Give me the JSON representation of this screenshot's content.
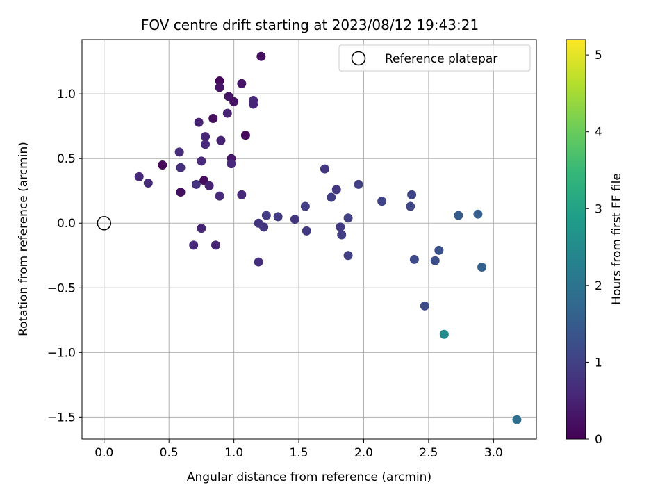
{
  "chart_data": {
    "type": "scatter",
    "title": "FOV centre drift starting at 2023/08/12 19:43:21",
    "xlabel": "Angular distance from reference (arcmin)",
    "ylabel": "Rotation from reference (arcmin)",
    "xlim": [
      -0.17,
      3.33
    ],
    "ylim": [
      -1.67,
      1.42
    ],
    "grid": true,
    "xticks": [
      0.0,
      0.5,
      1.0,
      1.5,
      2.0,
      2.5,
      3.0
    ],
    "xtick_labels": [
      "0.0",
      "0.5",
      "1.0",
      "1.5",
      "2.0",
      "2.5",
      "3.0"
    ],
    "yticks": [
      1.0,
      0.5,
      0.0,
      -0.5,
      -1.0,
      -1.5
    ],
    "ytick_labels": [
      "1.0",
      "0.5",
      "0.0",
      "−0.5",
      "−1.0",
      "−1.5"
    ],
    "legend": {
      "position": "top-right",
      "entries": [
        "Reference platepar"
      ]
    },
    "reference_point": {
      "x": 0.0,
      "y": 0.0,
      "marker": "open-circle"
    },
    "colorbar": {
      "label": "Hours from first FF file",
      "colormap": "viridis",
      "range": [
        0,
        5.2
      ],
      "ticks": [
        0,
        1,
        2,
        3,
        4,
        5
      ],
      "tick_labels": [
        "0",
        "1",
        "2",
        "3",
        "4",
        "5"
      ]
    },
    "points": [
      {
        "x": 0.27,
        "y": 0.36,
        "hours": 0.6
      },
      {
        "x": 0.34,
        "y": 0.31,
        "hours": 0.65
      },
      {
        "x": 0.45,
        "y": 0.45,
        "hours": 0.1
      },
      {
        "x": 0.58,
        "y": 0.55,
        "hours": 0.65
      },
      {
        "x": 0.59,
        "y": 0.43,
        "hours": 0.7
      },
      {
        "x": 0.59,
        "y": 0.24,
        "hours": 0.2
      },
      {
        "x": 0.69,
        "y": -0.17,
        "hours": 0.6
      },
      {
        "x": 0.71,
        "y": 0.3,
        "hours": 0.75
      },
      {
        "x": 0.73,
        "y": 0.78,
        "hours": 0.5
      },
      {
        "x": 0.75,
        "y": 0.48,
        "hours": 0.6
      },
      {
        "x": 0.75,
        "y": -0.04,
        "hours": 0.55
      },
      {
        "x": 0.77,
        "y": 0.33,
        "hours": 0.15
      },
      {
        "x": 0.78,
        "y": 0.67,
        "hours": 0.55
      },
      {
        "x": 0.78,
        "y": 0.61,
        "hours": 0.6
      },
      {
        "x": 0.81,
        "y": 0.29,
        "hours": 0.5
      },
      {
        "x": 0.84,
        "y": 0.81,
        "hours": 0.2
      },
      {
        "x": 0.86,
        "y": -0.17,
        "hours": 0.55
      },
      {
        "x": 0.89,
        "y": 1.1,
        "hours": 0.1
      },
      {
        "x": 0.89,
        "y": 1.05,
        "hours": 0.3
      },
      {
        "x": 0.89,
        "y": 0.21,
        "hours": 0.6
      },
      {
        "x": 0.9,
        "y": 0.64,
        "hours": 0.5
      },
      {
        "x": 0.95,
        "y": 0.85,
        "hours": 0.5
      },
      {
        "x": 0.96,
        "y": 0.98,
        "hours": 0.3
      },
      {
        "x": 0.98,
        "y": 0.5,
        "hours": 0.3
      },
      {
        "x": 0.98,
        "y": 0.46,
        "hours": 0.6
      },
      {
        "x": 1.0,
        "y": 0.94,
        "hours": 0.25
      },
      {
        "x": 1.06,
        "y": 1.08,
        "hours": 0.3
      },
      {
        "x": 1.06,
        "y": 0.22,
        "hours": 0.6
      },
      {
        "x": 1.09,
        "y": 0.68,
        "hours": 0.1
      },
      {
        "x": 1.15,
        "y": 0.95,
        "hours": 0.6
      },
      {
        "x": 1.15,
        "y": 0.92,
        "hours": 0.55
      },
      {
        "x": 1.19,
        "y": 0.0,
        "hours": 0.8
      },
      {
        "x": 1.19,
        "y": -0.3,
        "hours": 0.7
      },
      {
        "x": 1.21,
        "y": 1.29,
        "hours": 0.2
      },
      {
        "x": 1.23,
        "y": -0.03,
        "hours": 0.8
      },
      {
        "x": 1.25,
        "y": 0.06,
        "hours": 0.9
      },
      {
        "x": 1.34,
        "y": 0.05,
        "hours": 0.9
      },
      {
        "x": 1.47,
        "y": 0.03,
        "hours": 0.8
      },
      {
        "x": 1.55,
        "y": 0.13,
        "hours": 0.95
      },
      {
        "x": 1.56,
        "y": -0.06,
        "hours": 0.9
      },
      {
        "x": 1.7,
        "y": 0.42,
        "hours": 0.8
      },
      {
        "x": 1.75,
        "y": 0.2,
        "hours": 0.95
      },
      {
        "x": 1.79,
        "y": 0.26,
        "hours": 0.85
      },
      {
        "x": 1.82,
        "y": -0.03,
        "hours": 0.9
      },
      {
        "x": 1.83,
        "y": -0.09,
        "hours": 0.95
      },
      {
        "x": 1.88,
        "y": 0.04,
        "hours": 1.0
      },
      {
        "x": 1.88,
        "y": -0.25,
        "hours": 0.95
      },
      {
        "x": 1.96,
        "y": 0.3,
        "hours": 1.0
      },
      {
        "x": 2.14,
        "y": 0.17,
        "hours": 1.05
      },
      {
        "x": 2.36,
        "y": 0.13,
        "hours": 1.1
      },
      {
        "x": 2.37,
        "y": 0.22,
        "hours": 1.1
      },
      {
        "x": 2.39,
        "y": -0.28,
        "hours": 1.15
      },
      {
        "x": 2.47,
        "y": -0.64,
        "hours": 1.2
      },
      {
        "x": 2.55,
        "y": -0.29,
        "hours": 1.25
      },
      {
        "x": 2.58,
        "y": -0.21,
        "hours": 1.3
      },
      {
        "x": 2.62,
        "y": -0.86,
        "hours": 2.5
      },
      {
        "x": 2.73,
        "y": 0.06,
        "hours": 1.5
      },
      {
        "x": 2.88,
        "y": 0.07,
        "hours": 1.55
      },
      {
        "x": 2.91,
        "y": -0.34,
        "hours": 1.6
      },
      {
        "x": 3.18,
        "y": -1.52,
        "hours": 1.9
      }
    ]
  }
}
